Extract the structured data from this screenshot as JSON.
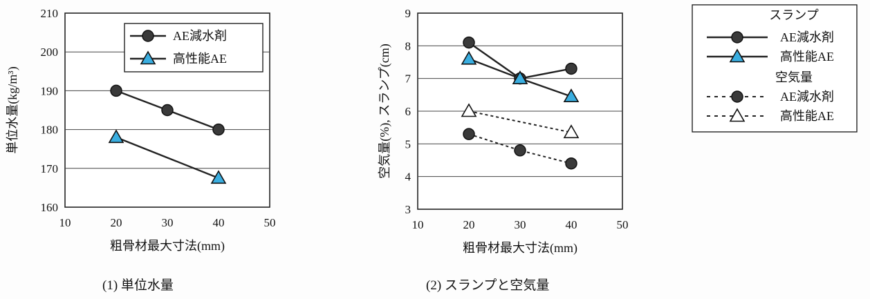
{
  "chart_data": [
    {
      "type": "line",
      "caption": "(1) 単位水量",
      "xlabel": "粗骨材最大寸法(mm)",
      "ylabel": "単位水量(kg/m³)",
      "xlim": [
        10,
        50
      ],
      "ylim": [
        160,
        210
      ],
      "xticks": [
        "10",
        "20",
        "30",
        "40",
        "50"
      ],
      "yticks": [
        "160",
        "170",
        "180",
        "190",
        "200",
        "210"
      ],
      "grid": true,
      "legend_position": "top-right",
      "series": [
        {
          "name": "AE減水剤",
          "marker": "circle",
          "line": "solid",
          "x": [
            20,
            30,
            40
          ],
          "y": [
            190,
            185,
            180
          ]
        },
        {
          "name": "高性能AE",
          "marker": "triangle",
          "line": "solid",
          "x": [
            20,
            40
          ],
          "y": [
            178,
            167.5
          ]
        }
      ]
    },
    {
      "type": "line",
      "caption": "(2) スランプと空気量",
      "xlabel": "粗骨材最大寸法(mm)",
      "ylabel": "空気量(%), スランプ(cm)",
      "xlim": [
        10,
        50
      ],
      "ylim": [
        3,
        9
      ],
      "xticks": [
        "10",
        "20",
        "30",
        "40",
        "50"
      ],
      "yticks": [
        "3",
        "4",
        "5",
        "6",
        "7",
        "8",
        "9"
      ],
      "grid": true,
      "legend_position": "right",
      "series": [
        {
          "name": "AE減水剤",
          "marker": "circle",
          "line": "solid",
          "x": [
            20,
            30,
            40
          ],
          "y": [
            8.1,
            7.0,
            7.3
          ]
        },
        {
          "name": "高性能AE",
          "marker": "triangle",
          "line": "solid",
          "x": [
            20,
            30,
            40
          ],
          "y": [
            7.6,
            7.0,
            6.45
          ]
        },
        {
          "name": "AE減水剤",
          "marker": "circle",
          "line": "dotted",
          "x": [
            20,
            30,
            40
          ],
          "y": [
            5.3,
            4.8,
            4.4
          ]
        },
        {
          "name": "高性能AE",
          "marker": "triangle-open",
          "line": "dotted",
          "x": [
            20,
            40
          ],
          "y": [
            6.0,
            5.35
          ]
        }
      ]
    }
  ],
  "legend": {
    "group1_title": "スランプ",
    "group2_title": "空気量",
    "entries": [
      "AE減水剤",
      "高性能AE",
      "AE減水剤",
      "高性能AE"
    ]
  },
  "colors": {
    "circle_fill": "#3a3a3a",
    "triangle_fill": "#3aaee0",
    "line": "#222222",
    "grid": "#444444"
  }
}
